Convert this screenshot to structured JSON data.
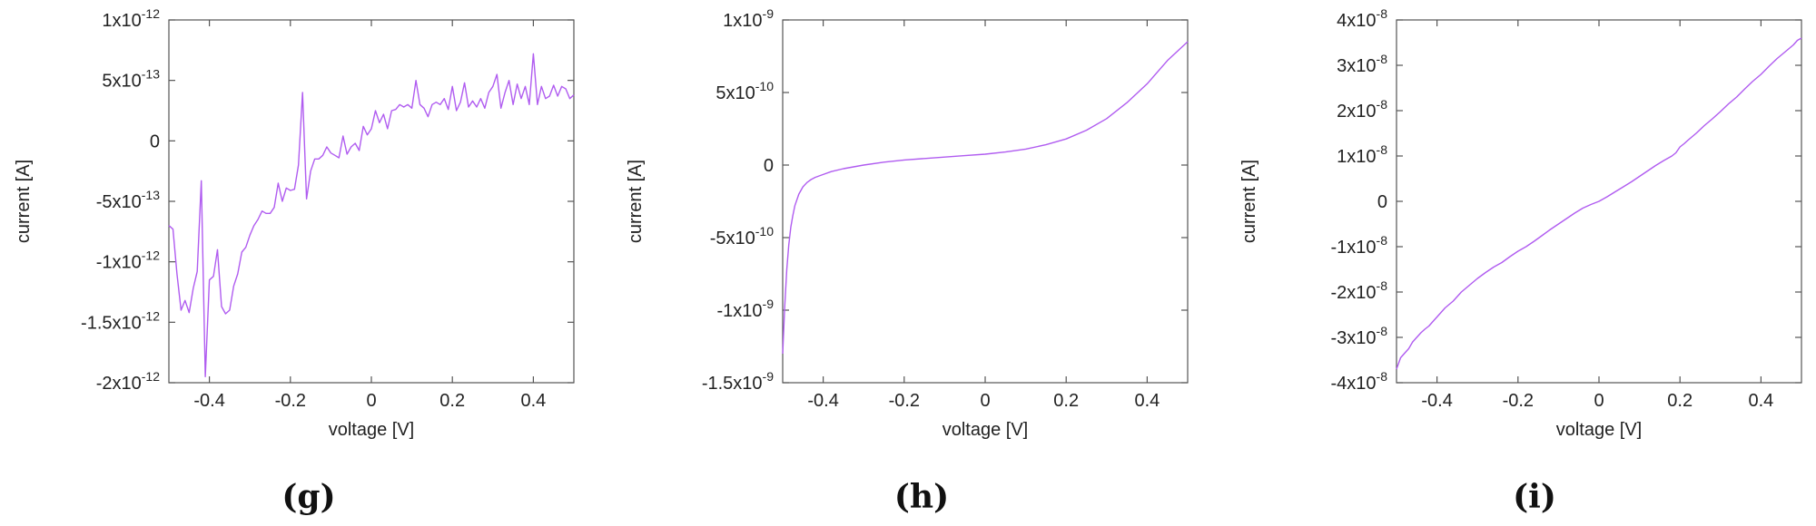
{
  "colors": {
    "series": "#b05cf0",
    "frame": "#555555",
    "text": "#222222"
  },
  "chart_data": [
    {
      "type": "line",
      "panel_label": "(g)",
      "xlabel": "voltage [V]",
      "ylabel": "current [A]",
      "xlim": [
        -0.5,
        0.5
      ],
      "ylim": [
        -2e-12,
        1e-12
      ],
      "xticks": [
        {
          "value": -0.4,
          "label": "-0.4"
        },
        {
          "value": -0.2,
          "label": "-0.2"
        },
        {
          "value": 0,
          "label": "0"
        },
        {
          "value": 0.2,
          "label": "0.2"
        },
        {
          "value": 0.4,
          "label": "0.4"
        }
      ],
      "yticks": [
        {
          "value": 1e-12,
          "mant": "1x10",
          "exp": "-12"
        },
        {
          "value": 5e-13,
          "mant": "5x10",
          "exp": "-13"
        },
        {
          "value": 0,
          "mant": "0",
          "exp": ""
        },
        {
          "value": -5e-13,
          "mant": "-5x10",
          "exp": "-13"
        },
        {
          "value": -1e-12,
          "mant": "-1x10",
          "exp": "-12"
        },
        {
          "value": -1.5e-12,
          "mant": "-1.5x10",
          "exp": "-12"
        },
        {
          "value": -2e-12,
          "mant": "-2x10",
          "exp": "-12"
        }
      ],
      "grid": false,
      "series": [
        {
          "x": [
            -0.5,
            -0.49,
            -0.48,
            -0.47,
            -0.46,
            -0.45,
            -0.44,
            -0.43,
            -0.42,
            -0.41,
            -0.4,
            -0.39,
            -0.38,
            -0.37,
            -0.36,
            -0.35,
            -0.34,
            -0.33,
            -0.32,
            -0.31,
            -0.3,
            -0.29,
            -0.28,
            -0.27,
            -0.26,
            -0.25,
            -0.24,
            -0.23,
            -0.22,
            -0.21,
            -0.2,
            -0.19,
            -0.18,
            -0.17,
            -0.16,
            -0.15,
            -0.14,
            -0.13,
            -0.12,
            -0.11,
            -0.1,
            -0.09,
            -0.08,
            -0.07,
            -0.06,
            -0.05,
            -0.04,
            -0.03,
            -0.02,
            -0.01,
            0,
            0.01,
            0.02,
            0.03,
            0.04,
            0.05,
            0.06,
            0.07,
            0.08,
            0.09,
            0.1,
            0.11,
            0.12,
            0.13,
            0.14,
            0.15,
            0.16,
            0.17,
            0.18,
            0.19,
            0.2,
            0.21,
            0.22,
            0.23,
            0.24,
            0.25,
            0.26,
            0.27,
            0.28,
            0.29,
            0.3,
            0.31,
            0.32,
            0.33,
            0.34,
            0.35,
            0.36,
            0.37,
            0.38,
            0.39,
            0.4,
            0.41,
            0.42,
            0.43,
            0.44,
            0.45,
            0.46,
            0.47,
            0.48,
            0.49,
            0.5
          ],
          "y": [
            -7e-13,
            -7.3e-13,
            -1.1e-12,
            -1.4e-12,
            -1.32e-12,
            -1.42e-12,
            -1.22e-12,
            -1.08e-12,
            -3.3e-13,
            -1.95e-12,
            -1.15e-12,
            -1.12e-12,
            -9e-13,
            -1.37e-12,
            -1.43e-12,
            -1.4e-12,
            -1.2e-12,
            -1.1e-12,
            -9.2e-13,
            -8.8e-13,
            -7.8e-13,
            -7e-13,
            -6.5e-13,
            -5.8e-13,
            -6e-13,
            -6e-13,
            -5.5e-13,
            -3.5e-13,
            -5e-13,
            -3.9e-13,
            -4.1e-13,
            -4e-13,
            -2e-13,
            4e-13,
            -4.8e-13,
            -2.5e-13,
            -1.5e-13,
            -1.5e-13,
            -1.2e-13,
            -5e-14,
            -1e-13,
            -1.2e-13,
            -1.4e-13,
            4e-14,
            -1.1e-13,
            -5e-14,
            -2e-14,
            -8e-14,
            1.2e-13,
            5e-14,
            1e-13,
            2.5e-13,
            1.5e-13,
            2.2e-13,
            1e-13,
            2.5e-13,
            2.6e-13,
            3e-13,
            2.8e-13,
            3e-13,
            2.7e-13,
            5e-13,
            3e-13,
            2.7e-13,
            2e-13,
            3e-13,
            3.2e-13,
            3e-13,
            3.5e-13,
            2.6e-13,
            4.5e-13,
            2.5e-13,
            3.2e-13,
            4.8e-13,
            2.8e-13,
            3.3e-13,
            2.8e-13,
            3.5e-13,
            2.7e-13,
            4e-13,
            4.5e-13,
            5.5e-13,
            2.7e-13,
            4e-13,
            5e-13,
            3e-13,
            4.7e-13,
            3.5e-13,
            4.5e-13,
            3e-13,
            7.2e-13,
            3e-13,
            4.5e-13,
            3.5e-13,
            3.7e-13,
            4.6e-13,
            3.7e-13,
            4.5e-13,
            4.3e-13,
            3.5e-13,
            3.8e-13
          ]
        }
      ]
    },
    {
      "type": "line",
      "panel_label": "(h)",
      "xlabel": "voltage [V]",
      "ylabel": "current [A]",
      "xlim": [
        -0.5,
        0.5
      ],
      "ylim": [
        -1.5e-09,
        1e-09
      ],
      "xticks": [
        {
          "value": -0.4,
          "label": "-0.4"
        },
        {
          "value": -0.2,
          "label": "-0.2"
        },
        {
          "value": 0,
          "label": "0"
        },
        {
          "value": 0.2,
          "label": "0.2"
        },
        {
          "value": 0.4,
          "label": "0.4"
        }
      ],
      "yticks": [
        {
          "value": 1e-09,
          "mant": "1x10",
          "exp": "-9"
        },
        {
          "value": 5e-10,
          "mant": "5x10",
          "exp": "-10"
        },
        {
          "value": 0,
          "mant": "0",
          "exp": ""
        },
        {
          "value": -5e-10,
          "mant": "-5x10",
          "exp": "-10"
        },
        {
          "value": -1e-09,
          "mant": "-1x10",
          "exp": "-9"
        },
        {
          "value": -1.5e-09,
          "mant": "-1.5x10",
          "exp": "-9"
        }
      ],
      "grid": false,
      "series": [
        {
          "x": [
            -0.5,
            -0.495,
            -0.49,
            -0.485,
            -0.48,
            -0.475,
            -0.47,
            -0.46,
            -0.45,
            -0.44,
            -0.43,
            -0.42,
            -0.41,
            -0.4,
            -0.38,
            -0.35,
            -0.3,
            -0.25,
            -0.2,
            -0.15,
            -0.1,
            -0.05,
            0,
            0.05,
            0.1,
            0.15,
            0.2,
            0.25,
            0.3,
            0.35,
            0.4,
            0.45,
            0.5
          ],
          "y": [
            -1.3e-09,
            -9.8e-10,
            -7.2e-10,
            -5.5e-10,
            -4.3e-10,
            -3.5e-10,
            -2.8e-10,
            -2e-10,
            -1.5e-10,
            -1.2e-10,
            -1e-10,
            -8.5e-11,
            -7.5e-11,
            -6.5e-11,
            -4.5e-11,
            -2.5e-11,
            0,
            2e-11,
            3.5e-11,
            4.5e-11,
            5.5e-11,
            6.5e-11,
            7.5e-11,
            9e-11,
            1.1e-10,
            1.4e-10,
            1.8e-10,
            2.4e-10,
            3.2e-10,
            4.3e-10,
            5.6e-10,
            7.2e-10,
            8.5e-10
          ]
        }
      ]
    },
    {
      "type": "line",
      "panel_label": "(i)",
      "xlabel": "voltage [V]",
      "ylabel": "current [A]",
      "xlim": [
        -0.5,
        0.5
      ],
      "ylim": [
        -4e-08,
        4e-08
      ],
      "xticks": [
        {
          "value": -0.4,
          "label": "-0.4"
        },
        {
          "value": -0.2,
          "label": "-0.2"
        },
        {
          "value": 0,
          "label": "0"
        },
        {
          "value": 0.2,
          "label": "0.2"
        },
        {
          "value": 0.4,
          "label": "0.4"
        }
      ],
      "yticks": [
        {
          "value": 4e-08,
          "mant": "4x10",
          "exp": "-8"
        },
        {
          "value": 3e-08,
          "mant": "3x10",
          "exp": "-8"
        },
        {
          "value": 2e-08,
          "mant": "2x10",
          "exp": "-8"
        },
        {
          "value": 1e-08,
          "mant": "1x10",
          "exp": "-8"
        },
        {
          "value": 0,
          "mant": "0",
          "exp": ""
        },
        {
          "value": -1e-08,
          "mant": "-1x10",
          "exp": "-8"
        },
        {
          "value": -2e-08,
          "mant": "-2x10",
          "exp": "-8"
        },
        {
          "value": -3e-08,
          "mant": "-3x10",
          "exp": "-8"
        },
        {
          "value": -4e-08,
          "mant": "-4x10",
          "exp": "-8"
        }
      ],
      "grid": false,
      "series": [
        {
          "x": [
            -0.5,
            -0.49,
            -0.48,
            -0.47,
            -0.46,
            -0.45,
            -0.44,
            -0.43,
            -0.42,
            -0.41,
            -0.4,
            -0.38,
            -0.36,
            -0.34,
            -0.32,
            -0.3,
            -0.28,
            -0.26,
            -0.24,
            -0.22,
            -0.2,
            -0.18,
            -0.16,
            -0.14,
            -0.12,
            -0.1,
            -0.08,
            -0.06,
            -0.04,
            -0.02,
            0,
            0.02,
            0.04,
            0.06,
            0.08,
            0.1,
            0.12,
            0.14,
            0.16,
            0.18,
            0.19,
            0.2,
            0.21,
            0.22,
            0.24,
            0.26,
            0.28,
            0.3,
            0.32,
            0.34,
            0.36,
            0.38,
            0.4,
            0.42,
            0.44,
            0.46,
            0.48,
            0.49,
            0.5
          ],
          "y": [
            -3.7e-08,
            -3.45e-08,
            -3.35e-08,
            -3.25e-08,
            -3.1e-08,
            -3e-08,
            -2.9e-08,
            -2.82e-08,
            -2.75e-08,
            -2.65e-08,
            -2.55e-08,
            -2.35e-08,
            -2.2e-08,
            -2e-08,
            -1.85e-08,
            -1.7e-08,
            -1.57e-08,
            -1.45e-08,
            -1.35e-08,
            -1.22e-08,
            -1.1e-08,
            -1e-08,
            -8.8e-09,
            -7.5e-09,
            -6.2e-09,
            -5e-09,
            -3.8e-09,
            -2.6e-09,
            -1.5e-09,
            -7e-10,
            0,
            1e-09,
            2.1e-09,
            3.2e-09,
            4.3e-09,
            5.5e-09,
            6.7e-09,
            7.9e-09,
            9e-09,
            1e-08,
            1.07e-08,
            1.2e-08,
            1.27e-08,
            1.35e-08,
            1.5e-08,
            1.67e-08,
            1.82e-08,
            1.98e-08,
            2.15e-08,
            2.3e-08,
            2.48e-08,
            2.65e-08,
            2.8e-08,
            2.98e-08,
            3.15e-08,
            3.3e-08,
            3.45e-08,
            3.55e-08,
            3.6e-08
          ]
        }
      ]
    }
  ]
}
